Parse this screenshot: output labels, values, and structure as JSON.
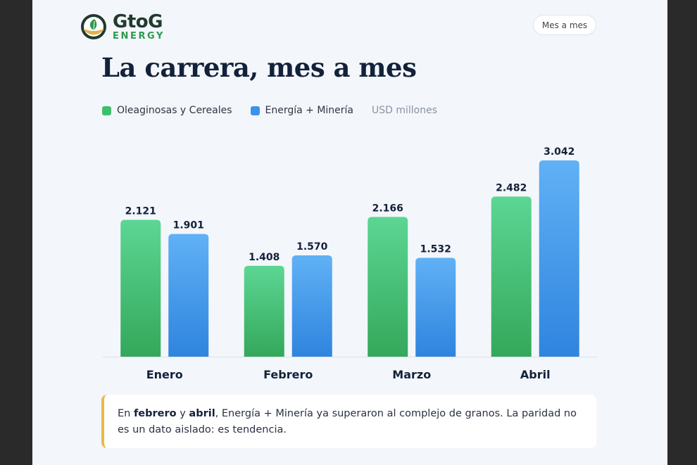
{
  "brand": {
    "name": "GtoG",
    "sub": "ENERGY",
    "mark_icon": "leaf-icon"
  },
  "header": {
    "toggle_label": "Mes a mes"
  },
  "page": {
    "title": "La carrera, mes a mes"
  },
  "legend": {
    "items": [
      {
        "label": "Oleaginosas y Cereales",
        "color": "#3fbf6e"
      },
      {
        "label": "Energía + Minería",
        "color": "#3d93e8"
      }
    ],
    "unit": "USD millones"
  },
  "chart_data": {
    "type": "bar",
    "categories": [
      "Enero",
      "Febrero",
      "Marzo",
      "Abril"
    ],
    "series": [
      {
        "name": "Oleaginosas y Cereales",
        "values": [
          2121,
          1408,
          2166,
          2482
        ],
        "labels": [
          "2.121",
          "1.408",
          "2.166",
          "2.482"
        ],
        "color": "#3fbf6e"
      },
      {
        "name": "Energía + Minería",
        "values": [
          1901,
          1570,
          1532,
          3042
        ],
        "labels": [
          "1.901",
          "1.570",
          "1.532",
          "3.042"
        ],
        "color": "#3d93e8"
      }
    ],
    "ylim": [
      0,
      3042
    ],
    "grid": false,
    "legend_position": "top-left"
  },
  "note": {
    "p1": "En ",
    "b1": "febrero",
    "p2": " y ",
    "b2": "abril",
    "p3": ", Energía + Minería ya superaron al complejo de granos. La paridad no es un dato aislado: es tendencia."
  }
}
